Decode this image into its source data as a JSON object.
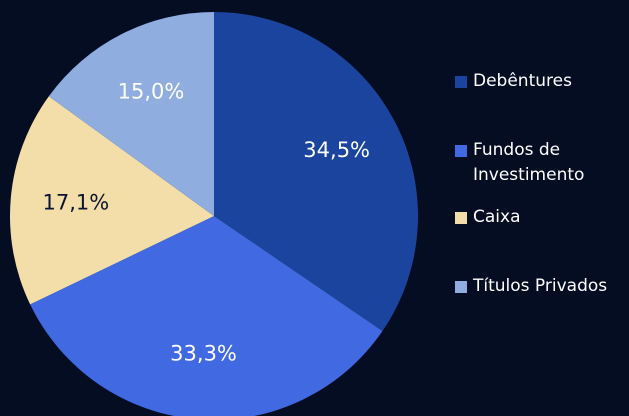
{
  "chart_data": {
    "type": "pie",
    "categories": [
      "Debêntures",
      "Fundos de Investimento",
      "Caixa",
      "Títulos Privados"
    ],
    "values": [
      34.5,
      33.3,
      17.1,
      15.0
    ],
    "value_labels": [
      "34,5%",
      "33,3%",
      "17,1%",
      "15,0%"
    ],
    "colors": [
      "#1a449e",
      "#4169e1",
      "#f3deaa",
      "#90ade0"
    ],
    "legend": "right"
  }
}
